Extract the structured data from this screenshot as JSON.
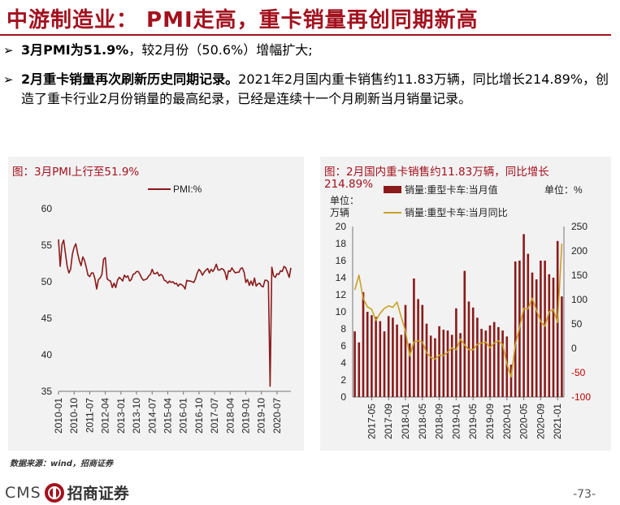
{
  "header": {
    "title": "中游制造业： PMI走高，重卡销量再创同期新高"
  },
  "bullets": {
    "b1_bold": "3月PMI为51.9%",
    "b1_rest": "，较2月份（50.6%）增幅扩大;",
    "b2_bold": "2月重卡销量再次刷新历史同期记录。",
    "b2_rest": "2021年2月国内重卡销售约11.83万辆，同比增长214.89%，创造了重卡行业2月份销量的最高纪录，已经是连续十一个月刷新当月销量记录。",
    "arrow": "➢"
  },
  "footer": {
    "source": "数据来源：wind，招商证券",
    "brand_cms": "CMS",
    "brand_name": "招商证券",
    "page_number": "-73-"
  },
  "colors": {
    "brand": "#a3111e",
    "line": "#8b1a1a",
    "bar": "#8b1a1a",
    "yoy": "#c9a227",
    "panel_bg": "#f2f2f2"
  },
  "chart_data": [
    {
      "type": "line",
      "title": "图：3月PMI上行至51.9%",
      "legend": [
        "PMI:%"
      ],
      "ylim": [
        35,
        60
      ],
      "yticks": [
        35,
        40,
        45,
        50,
        55,
        60
      ],
      "xtick_labels": [
        "2010-01",
        "2010-10",
        "2011-07",
        "2012-04",
        "2013-01",
        "2013-10",
        "2014-07",
        "2015-04",
        "2016-01",
        "2016-10",
        "2017-07",
        "2018-04",
        "2019-01",
        "2019-10",
        "2020-07"
      ],
      "x_start": "2010-01",
      "series": [
        {
          "name": "PMI:%",
          "values": [
            55.8,
            52.1,
            55.1,
            55.7,
            53.9,
            52.1,
            51.2,
            51.7,
            53.8,
            54.7,
            55.2,
            53.9,
            52.9,
            52.2,
            53.4,
            52.9,
            52.0,
            50.9,
            50.7,
            51.2,
            51.2,
            50.4,
            49.0,
            50.3,
            50.5,
            51.0,
            53.1,
            53.3,
            50.4,
            50.2,
            50.1,
            49.2,
            49.8,
            49.2,
            50.2,
            50.6,
            50.4,
            50.1,
            50.9,
            50.6,
            50.8,
            50.1,
            50.3,
            51.0,
            51.1,
            51.4,
            51.4,
            51.0,
            50.5,
            50.2,
            50.3,
            50.4,
            50.8,
            51.0,
            51.7,
            51.1,
            51.1,
            51.3,
            50.8,
            51.0,
            50.8,
            50.2,
            50.1,
            49.8,
            50.1,
            49.9,
            50.0,
            49.7,
            49.8,
            49.4,
            49.7,
            49.6,
            49.4,
            49.0,
            50.2,
            50.1,
            50.1,
            50.0,
            49.9,
            50.4,
            51.2,
            51.7,
            51.4,
            50.9,
            51.3,
            51.6,
            51.8,
            51.2,
            51.7,
            51.4,
            51.8,
            52.4,
            51.6,
            51.6,
            51.8,
            51.7,
            51.3,
            50.3,
            51.5,
            51.4,
            51.9,
            51.5,
            51.2,
            51.3,
            51.3,
            51.8,
            51.9,
            51.3,
            49.9,
            50.3,
            49.5,
            50.1,
            49.5,
            50.5,
            49.4,
            49.7,
            49.8,
            49.4,
            49.3,
            50.2,
            50.2,
            50.0,
            35.7,
            52.0,
            50.8,
            50.6,
            51.1,
            51.0,
            51.5,
            51.4,
            52.1,
            51.9,
            51.3,
            50.6,
            51.9
          ]
        }
      ]
    },
    {
      "type": "bar",
      "title": "图：2月国内重卡销售约11.83万辆，同比增长214.89%",
      "left_unit": "单位：万辆",
      "right_unit": "单位：%",
      "legend": [
        "销量:重型卡车:当月值",
        "销量:重型卡车:当月同比"
      ],
      "ylim_left": [
        0,
        20
      ],
      "yticks_left": [
        0,
        2,
        4,
        6,
        8,
        10,
        12,
        14,
        16,
        18,
        20
      ],
      "ylim_right": [
        -100,
        250
      ],
      "yticks_right": [
        -100,
        -50,
        0,
        50,
        100,
        150,
        200,
        250
      ],
      "xtick_labels": [
        "2017-05",
        "2017-09",
        "2018-01",
        "2018-05",
        "2018-09",
        "2019-01",
        "2019-05",
        "2019-09",
        "2020-01",
        "2020-05",
        "2020-09",
        "2021-01"
      ],
      "x_start": "2017-01",
      "series": [
        {
          "name": "销量:重型卡车:当月值",
          "axis": "left",
          "values": [
            7.7,
            6.4,
            12.3,
            10.0,
            9.6,
            9.4,
            8.9,
            7.7,
            9.5,
            9.3,
            8.5,
            7.3,
            10.8,
            6.3,
            13.9,
            11.5,
            10.8,
            8.6,
            7.2,
            6.9,
            8.3,
            7.9,
            7.8,
            7.3,
            10.4,
            7.5,
            14.8,
            11.2,
            10.5,
            9.3,
            8.0,
            7.8,
            8.4,
            8.8,
            8.2,
            7.8,
            7.1,
            3.8,
            15.9,
            16.0,
            19.1,
            16.8,
            14.6,
            13.8,
            16.0,
            16.0,
            14.4,
            14.0,
            18.3,
            11.8
          ]
        },
        {
          "name": "销量:重型卡车:当月同比",
          "axis": "right",
          "values": [
            120,
            150,
            102,
            85,
            80,
            57,
            72,
            82,
            87,
            84,
            95,
            64,
            36,
            -16,
            13,
            15,
            13,
            -9,
            -19,
            -22,
            -14,
            -15,
            -8,
            1,
            -3,
            19,
            7,
            -3,
            -3,
            8,
            11,
            13,
            1,
            11,
            15,
            8,
            -32,
            -59,
            7,
            43,
            82,
            81,
            103,
            78,
            55,
            45,
            75,
            80,
            53,
            215
          ]
        }
      ]
    }
  ],
  "panels": {
    "pmi_title": "图：3月PMI上行至51.9%",
    "pmi_legend": "PMI:%",
    "hv_title_line1": "图：2月国内重卡销售约11.83万辆，同比增长",
    "hv_title_line2": "214.89%",
    "hv_left_unit_1": "单位：",
    "hv_left_unit_2": "万辆",
    "hv_right_unit": "单位：%",
    "hv_legend_bar": "销量:重型卡车:当月值",
    "hv_legend_line": "销量:重型卡车:当月同比"
  }
}
